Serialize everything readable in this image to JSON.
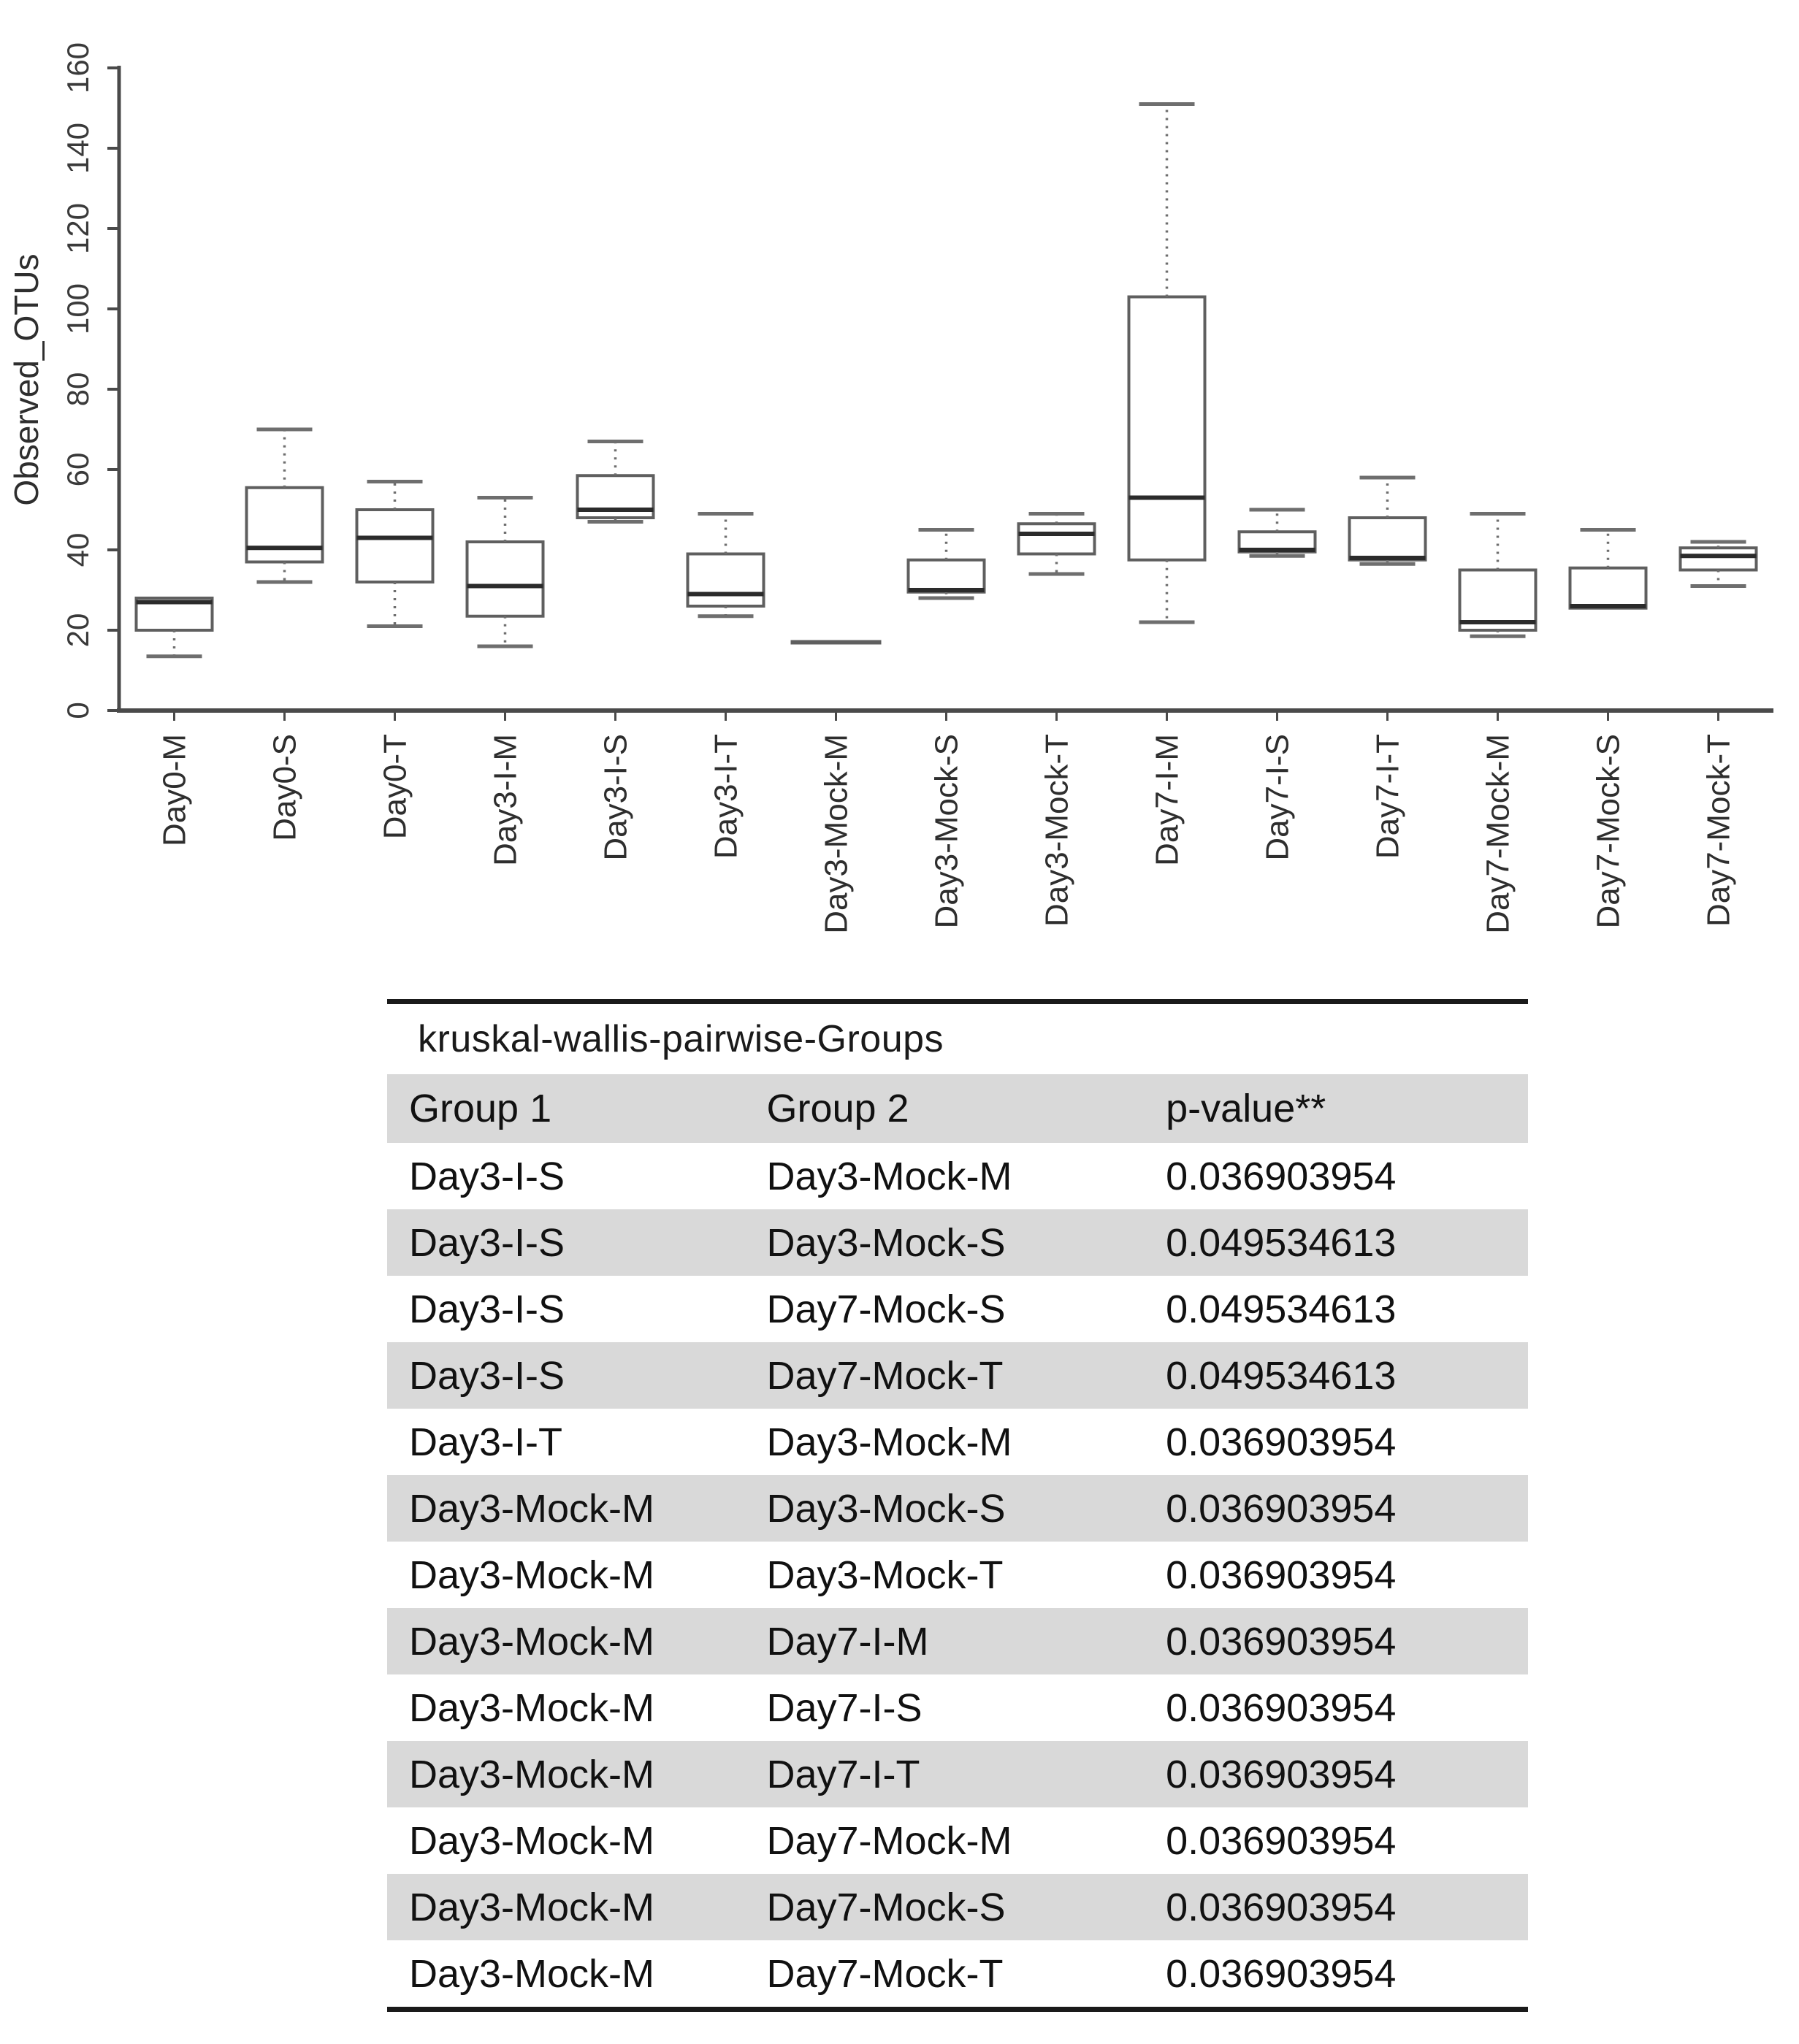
{
  "chart_data": {
    "type": "boxplot",
    "title": "",
    "xlabel": "",
    "ylabel": "Observed_OTUs",
    "ylim": [
      0,
      160
    ],
    "ytick_step": 20,
    "yticks": [
      0,
      20,
      40,
      60,
      80,
      100,
      120,
      140,
      160
    ],
    "grid": false,
    "legend": "none",
    "categories": [
      "Day0-M",
      "Day0-S",
      "Day0-T",
      "Day3-I-M",
      "Day3-I-S",
      "Day3-I-T",
      "Day3-Mock-M",
      "Day3-Mock-S",
      "Day3-Mock-T",
      "Day7-I-M",
      "Day7-I-S",
      "Day7-I-T",
      "Day7-Mock-M",
      "Day7-Mock-S",
      "Day7-Mock-T"
    ],
    "boxes": [
      {
        "label": "Day0-M",
        "whislo": 13.5,
        "q1": 20,
        "med": 27,
        "q3": 28,
        "whishi": 28
      },
      {
        "label": "Day0-S",
        "whislo": 32,
        "q1": 37,
        "med": 40.5,
        "q3": 55.5,
        "whishi": 70
      },
      {
        "label": "Day0-T",
        "whislo": 21,
        "q1": 32,
        "med": 43,
        "q3": 50,
        "whishi": 57
      },
      {
        "label": "Day3-I-M",
        "whislo": 16,
        "q1": 23.5,
        "med": 31,
        "q3": 42,
        "whishi": 53
      },
      {
        "label": "Day3-I-S",
        "whislo": 47,
        "q1": 48,
        "med": 50,
        "q3": 58.5,
        "whishi": 67
      },
      {
        "label": "Day3-I-T",
        "whislo": 23.5,
        "q1": 26,
        "med": 29,
        "q3": 39,
        "whishi": 49
      },
      {
        "label": "Day3-Mock-M",
        "whislo": 17,
        "q1": 17,
        "med": 17,
        "q3": 17,
        "whishi": 17
      },
      {
        "label": "Day3-Mock-S",
        "whislo": 28,
        "q1": 29.5,
        "med": 30,
        "q3": 37.5,
        "whishi": 45
      },
      {
        "label": "Day3-Mock-T",
        "whislo": 34,
        "q1": 39,
        "med": 44,
        "q3": 46.5,
        "whishi": 49
      },
      {
        "label": "Day7-I-M",
        "whislo": 22,
        "q1": 37.5,
        "med": 53,
        "q3": 103,
        "whishi": 151
      },
      {
        "label": "Day7-I-S",
        "whislo": 38.5,
        "q1": 39.5,
        "med": 40,
        "q3": 44.5,
        "whishi": 50
      },
      {
        "label": "Day7-I-T",
        "whislo": 36.5,
        "q1": 37.5,
        "med": 38,
        "q3": 48,
        "whishi": 58
      },
      {
        "label": "Day7-Mock-M",
        "whislo": 18.5,
        "q1": 20,
        "med": 22,
        "q3": 35,
        "whishi": 49
      },
      {
        "label": "Day7-Mock-S",
        "whislo": 25.5,
        "q1": 25.5,
        "med": 26,
        "q3": 35.5,
        "whishi": 45
      },
      {
        "label": "Day7-Mock-T",
        "whislo": 31,
        "q1": 35,
        "med": 38.5,
        "q3": 40.5,
        "whishi": 42
      }
    ]
  },
  "table": {
    "title": "kruskal-wallis-pairwise-Groups",
    "columns": [
      "Group 1",
      "Group 2",
      "p-value**"
    ],
    "rows": [
      [
        "Day3-I-S",
        "Day3-Mock-M",
        "0.036903954"
      ],
      [
        "Day3-I-S",
        "Day3-Mock-S",
        "0.049534613"
      ],
      [
        "Day3-I-S",
        "Day7-Mock-S",
        "0.049534613"
      ],
      [
        "Day3-I-S",
        "Day7-Mock-T",
        "0.049534613"
      ],
      [
        "Day3-I-T",
        "Day3-Mock-M",
        "0.036903954"
      ],
      [
        "Day3-Mock-M",
        "Day3-Mock-S",
        "0.036903954"
      ],
      [
        "Day3-Mock-M",
        "Day3-Mock-T",
        "0.036903954"
      ],
      [
        "Day3-Mock-M",
        "Day7-I-M",
        "0.036903954"
      ],
      [
        "Day3-Mock-M",
        "Day7-I-S",
        "0.036903954"
      ],
      [
        "Day3-Mock-M",
        "Day7-I-T",
        "0.036903954"
      ],
      [
        "Day3-Mock-M",
        "Day7-Mock-M",
        "0.036903954"
      ],
      [
        "Day3-Mock-M",
        "Day7-Mock-S",
        "0.036903954"
      ],
      [
        "Day3-Mock-M",
        "Day7-Mock-T",
        "0.036903954"
      ]
    ]
  },
  "colors": {
    "box_stroke": "#5f5f5f",
    "median": "#2b2b2b",
    "whisker": "#6e6e6e",
    "axis": "#4a4a4a",
    "tick_text": "#3a3a3a",
    "table_stripe": "#d9d9d9",
    "table_rule": "#1a1a1a",
    "background": "#ffffff"
  }
}
